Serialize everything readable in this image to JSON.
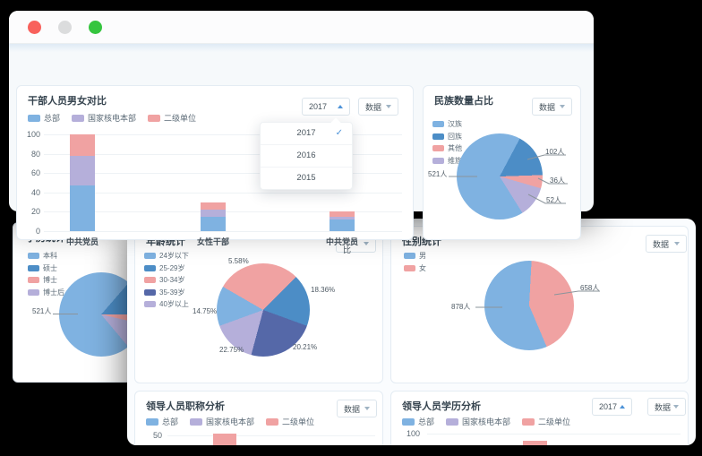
{
  "palette": {
    "blue": "#7FB2E1",
    "dark_blue": "#4C8DC6",
    "pink": "#F0A2A2",
    "purple": "#B5AFDA",
    "navy": "#5568A8",
    "accent": "#4D93D8",
    "traffic_red": "#F8615C",
    "traffic_gray": "#DBDCDD",
    "traffic_green": "#35C53F"
  },
  "ui": {
    "cards": {
      "gender_compare": {
        "title": "干部人员男女对比",
        "year_select": "2017",
        "data_select": "数据",
        "menu": {
          "items": [
            "2017",
            "2016",
            "2015"
          ],
          "selected": "2017"
        },
        "legend": [
          {
            "label": "总部",
            "color": "blue"
          },
          {
            "label": "国家核电本部",
            "color": "purple"
          },
          {
            "label": "二级单位",
            "color": "pink"
          }
        ]
      },
      "ethnic": {
        "title": "民族数量占比",
        "data_select": "数据",
        "legend": [
          {
            "label": "汉族",
            "color": "blue"
          },
          {
            "label": "回族",
            "color": "dark_blue"
          },
          {
            "label": "其他",
            "color": "pink"
          },
          {
            "label": "维族",
            "color": "purple"
          }
        ]
      },
      "education": {
        "title": "学历统计",
        "legend": [
          {
            "label": "本科",
            "color": "blue"
          },
          {
            "label": "硕士",
            "color": "dark_blue"
          },
          {
            "label": "博士",
            "color": "pink"
          },
          {
            "label": "博士后",
            "color": "purple"
          }
        ]
      },
      "age": {
        "title": "年龄统计",
        "data_select": "百分比",
        "legend": [
          {
            "label": "24岁以下",
            "color": "blue"
          },
          {
            "label": "25-29岁",
            "color": "dark_blue"
          },
          {
            "label": "30-34岁",
            "color": "pink"
          },
          {
            "label": "35-39岁",
            "color": "navy"
          },
          {
            "label": "40岁以上",
            "color": "purple"
          }
        ]
      },
      "sex": {
        "title": "性别统计",
        "data_select": "数据",
        "legend": [
          {
            "label": "男",
            "color": "blue"
          },
          {
            "label": "女",
            "color": "pink"
          }
        ]
      },
      "position": {
        "title": "领导人员职称分析",
        "data_select": "数据",
        "legend": [
          {
            "label": "总部",
            "color": "blue"
          },
          {
            "label": "国家核电本部",
            "color": "purple"
          },
          {
            "label": "二级单位",
            "color": "pink"
          }
        ]
      },
      "edu_analysis": {
        "title": "领导人员学历分析",
        "year_select": "2017",
        "data_select": "数据",
        "legend": [
          {
            "label": "总部",
            "color": "blue"
          },
          {
            "label": "国家核电本部",
            "color": "purple"
          },
          {
            "label": "二级单位",
            "color": "pink"
          }
        ]
      }
    }
  },
  "chart_data": [
    {
      "id": "cadre_gender_bar",
      "type": "bar",
      "stacked": true,
      "title": "干部人员男女对比",
      "categories": [
        "中共党员",
        "女性干部",
        "中共党员"
      ],
      "series": [
        {
          "name": "总部",
          "color": "blue",
          "values": [
            47,
            15,
            12
          ]
        },
        {
          "name": "国家核电本部",
          "color": "purple",
          "values": [
            31,
            7,
            3
          ]
        },
        {
          "name": "二级单位",
          "color": "pink",
          "values": [
            22,
            8,
            5
          ]
        }
      ],
      "ylim": [
        0,
        100
      ],
      "yticks": [
        0,
        20,
        40,
        60,
        80,
        100
      ],
      "grid": true,
      "legend_position": "top-left"
    },
    {
      "id": "ethnic_pie",
      "type": "pie",
      "title": "民族数量占比",
      "unit": "人",
      "start_angle": 28,
      "slices": [
        {
          "name": "回族",
          "value": 102,
          "label": "102人",
          "color": "dark_blue",
          "sweep": 60
        },
        {
          "name": "其他",
          "value": 36,
          "label": "36人",
          "color": "pink",
          "sweep": 18
        },
        {
          "name": "维族",
          "value": 52,
          "label": "52人",
          "color": "purple",
          "sweep": 42
        },
        {
          "name": "汉族",
          "value": 521,
          "label": "521人",
          "color": "blue",
          "sweep": 240
        }
      ]
    },
    {
      "id": "education_pie",
      "type": "pie",
      "title": "学历统计",
      "unit": "人",
      "start_angle": 41,
      "slices": [
        {
          "name": "硕士",
          "color": "dark_blue",
          "sweep": 49
        },
        {
          "name": "博士",
          "color": "pink",
          "sweep": 13
        },
        {
          "name": "博士后",
          "color": "purple",
          "sweep": 37
        },
        {
          "name": "本科",
          "value": 521,
          "label": "521人",
          "color": "blue",
          "sweep": 261
        }
      ]
    },
    {
      "id": "age_pie",
      "type": "pie",
      "title": "年龄统计",
      "unit": "%",
      "start_angle": 300,
      "slices": [
        {
          "name": "30-34岁",
          "value": 5.58,
          "label": "5.58%",
          "color": "pink",
          "sweep": 105
        },
        {
          "name": "25-29岁",
          "value": 18.36,
          "label": "18.36%",
          "color": "dark_blue",
          "sweep": 65
        },
        {
          "name": "35-39岁",
          "value": 20.21,
          "label": "20.21%",
          "color": "navy",
          "sweep": 85
        },
        {
          "name": "40岁以上",
          "value": 22.75,
          "label": "22.75%",
          "color": "purple",
          "sweep": 55
        },
        {
          "name": "24岁以下",
          "value": 14.75,
          "label": "14.75%",
          "color": "blue",
          "sweep": 50
        }
      ]
    },
    {
      "id": "sex_pie",
      "type": "pie",
      "title": "性别统计",
      "unit": "人",
      "start_angle": 3,
      "slices": [
        {
          "name": "女",
          "value": 658,
          "label": "658人",
          "color": "pink",
          "sweep": 154
        },
        {
          "name": "男",
          "value": 878,
          "label": "878人",
          "color": "blue",
          "sweep": 206
        }
      ]
    },
    {
      "id": "position_title_bar",
      "type": "bar",
      "title": "领导人员职称分析",
      "partial_visible": true,
      "visible_yticks": [
        "50"
      ],
      "series": [
        {
          "name": "总部",
          "color": "blue"
        },
        {
          "name": "国家核电本部",
          "color": "purple"
        },
        {
          "name": "二级单位",
          "color": "pink"
        }
      ]
    },
    {
      "id": "leader_education_bar",
      "type": "bar",
      "title": "领导人员学历分析",
      "partial_visible": true,
      "visible_yticks": [
        "100"
      ],
      "series": [
        {
          "name": "总部",
          "color": "blue"
        },
        {
          "name": "国家核电本部",
          "color": "purple"
        },
        {
          "name": "二级单位",
          "color": "pink"
        }
      ]
    }
  ]
}
